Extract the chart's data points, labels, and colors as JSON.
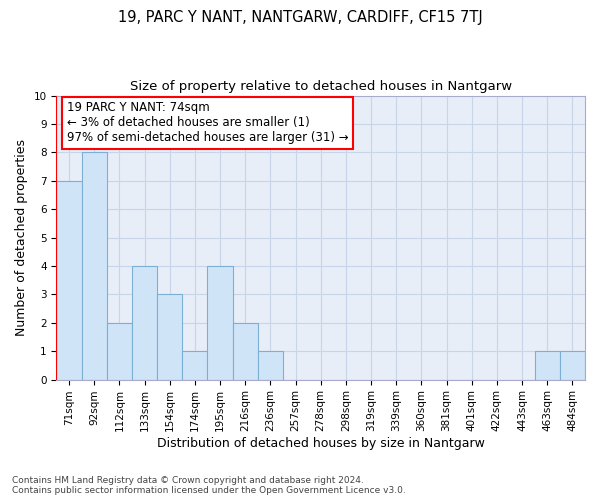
{
  "title": "19, PARC Y NANT, NANTGARW, CARDIFF, CF15 7TJ",
  "subtitle": "Size of property relative to detached houses in Nantgarw",
  "xlabel": "Distribution of detached houses by size in Nantgarw",
  "ylabel": "Number of detached properties",
  "footer1": "Contains HM Land Registry data © Crown copyright and database right 2024.",
  "footer2": "Contains public sector information licensed under the Open Government Licence v3.0.",
  "categories": [
    "71sqm",
    "92sqm",
    "112sqm",
    "133sqm",
    "154sqm",
    "174sqm",
    "195sqm",
    "216sqm",
    "236sqm",
    "257sqm",
    "278sqm",
    "298sqm",
    "319sqm",
    "339sqm",
    "360sqm",
    "381sqm",
    "401sqm",
    "422sqm",
    "443sqm",
    "463sqm",
    "484sqm"
  ],
  "values": [
    7,
    8,
    2,
    4,
    3,
    1,
    4,
    2,
    1,
    0,
    0,
    0,
    0,
    0,
    0,
    0,
    0,
    0,
    0,
    1,
    1
  ],
  "bar_color": "#d0e4f7",
  "bar_edge_color": "#7bafd4",
  "highlight_index": 0,
  "annotation_box_text_line1": "19 PARC Y NANT: 74sqm",
  "annotation_box_text_line2": "← 3% of detached houses are smaller (1)",
  "annotation_box_text_line3": "97% of semi-detached houses are larger (31) →",
  "ylim": [
    0,
    10
  ],
  "yticks": [
    0,
    1,
    2,
    3,
    4,
    5,
    6,
    7,
    8,
    9,
    10
  ],
  "grid_color": "#c8d4e8",
  "bg_color": "#e8eef8",
  "title_fontsize": 10.5,
  "subtitle_fontsize": 9.5,
  "axis_label_fontsize": 9,
  "tick_fontsize": 7.5,
  "annotation_fontsize": 8.5,
  "footer_fontsize": 6.5
}
